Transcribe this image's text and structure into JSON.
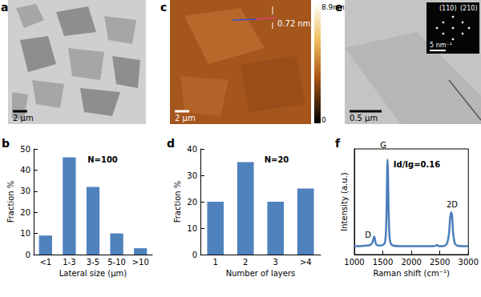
{
  "panels": [
    {
      "label": "a",
      "scale_bar": "2 μm"
    },
    {
      "label": "c",
      "scale_bar": "2 μm",
      "profile_height": "0.72 nm",
      "colorbar": {
        "range": [
          0,
          8.9
        ],
        "ticks": [
          {
            "value": 8.9,
            "label": "8.9nm"
          },
          0
        ]
      }
    },
    {
      "label": "e",
      "scale_bar": "0.5 μm",
      "inset": {
        "scale_bar": "5 nm⁻¹",
        "labels": [
          "(110)",
          "(210)"
        ]
      }
    }
  ],
  "chart_data": [
    {
      "type": "bar",
      "panel": "b",
      "categories": [
        "<1",
        "1-3",
        "3-5",
        "5-10",
        ">10"
      ],
      "values": [
        9,
        46,
        32,
        10,
        3
      ],
      "color": "#4f81bd",
      "xlabel": "Lateral size (μm)",
      "ylabel": "Fraction %",
      "ylim": [
        0,
        50
      ],
      "yticks": [
        0,
        10,
        20,
        30,
        40,
        50
      ],
      "grid": false,
      "annotations": [
        "N=100"
      ]
    },
    {
      "type": "bar",
      "panel": "d",
      "categories": [
        "1",
        "2",
        "3",
        ">4"
      ],
      "values": [
        20,
        35,
        20,
        25
      ],
      "color": "#4f81bd",
      "xlabel": "Number of layers",
      "ylabel": "Fraction %",
      "ylim": [
        0,
        40
      ],
      "yticks": [
        0,
        10,
        20,
        30,
        40
      ],
      "grid": false,
      "annotations": [
        "N=20"
      ]
    },
    {
      "type": "line",
      "panel": "f",
      "x": [
        1000,
        1100,
        1200,
        1280,
        1320,
        1340,
        1350,
        1360,
        1380,
        1420,
        1500,
        1540,
        1560,
        1575,
        1582,
        1590,
        1600,
        1620,
        1660,
        1800,
        2000,
        2200,
        2400,
        2450,
        2480,
        2550,
        2620,
        2660,
        2680,
        2700,
        2715,
        2730,
        2760,
        2800,
        2900,
        3000
      ],
      "values": [
        0.08,
        0.08,
        0.085,
        0.09,
        0.12,
        0.16,
        0.17,
        0.15,
        0.1,
        0.085,
        0.09,
        0.12,
        0.3,
        0.75,
        0.9,
        0.78,
        0.45,
        0.15,
        0.09,
        0.08,
        0.08,
        0.08,
        0.08,
        0.09,
        0.08,
        0.08,
        0.1,
        0.2,
        0.35,
        0.4,
        0.36,
        0.22,
        0.11,
        0.085,
        0.08,
        0.08
      ],
      "color": "#4a7ebb",
      "xlabel": "Raman shift (cm⁻¹)",
      "ylabel": "Intensity (a.u.)",
      "xlim": [
        1000,
        3000
      ],
      "xticks": [
        1000,
        1500,
        2000,
        2500,
        3000
      ],
      "ylim": [
        0,
        1
      ],
      "tick_labels": "x",
      "grid": false,
      "annotations": [
        "D",
        "G",
        "2D",
        "Id/Ig=0.16"
      ]
    }
  ]
}
